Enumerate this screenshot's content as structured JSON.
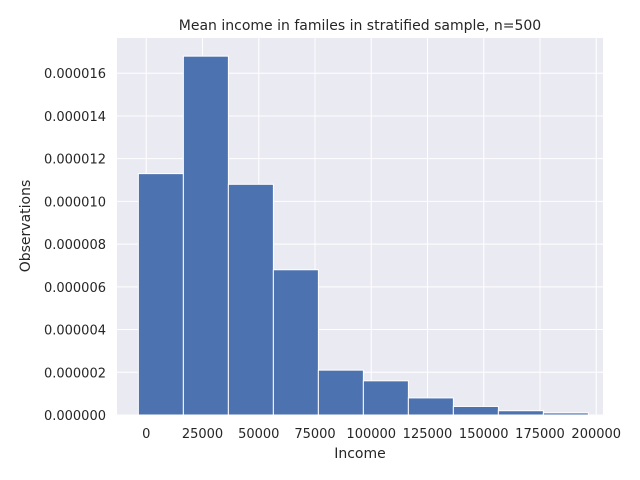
{
  "chart_data": {
    "type": "bar",
    "title": "Mean income in familes in stratified sample, n=500",
    "xlabel": "Income",
    "ylabel": "Observations",
    "bin_edges": [
      -3500,
      16500,
      36500,
      56500,
      76500,
      96500,
      116500,
      136500,
      156500,
      176500,
      196500
    ],
    "values": [
      1.13e-05,
      1.68e-05,
      1.08e-05,
      6.8e-06,
      2.1e-06,
      1.6e-06,
      8e-07,
      4e-07,
      2e-07,
      1e-07
    ],
    "xlim": [
      -13000,
      203000
    ],
    "ylim": [
      0,
      1.765e-05
    ],
    "x_ticks": [
      0,
      25000,
      50000,
      75000,
      100000,
      125000,
      150000,
      175000,
      200000
    ],
    "x_tick_labels": [
      "0",
      "25000",
      "50000",
      "75000",
      "100000",
      "125000",
      "150000",
      "175000",
      "200000"
    ],
    "y_ticks": [
      0,
      2e-06,
      4e-06,
      6e-06,
      8e-06,
      1e-05,
      1.2e-05,
      1.4e-05,
      1.6e-05
    ],
    "y_tick_labels": [
      "0.000000",
      "0.000002",
      "0.000004",
      "0.000006",
      "0.000008",
      "0.000010",
      "0.000012",
      "0.000014",
      "0.000016"
    ],
    "grid": true,
    "colors": {
      "bar": "#4c72b0",
      "background": "#eaeaf2",
      "grid": "#ffffff"
    }
  }
}
